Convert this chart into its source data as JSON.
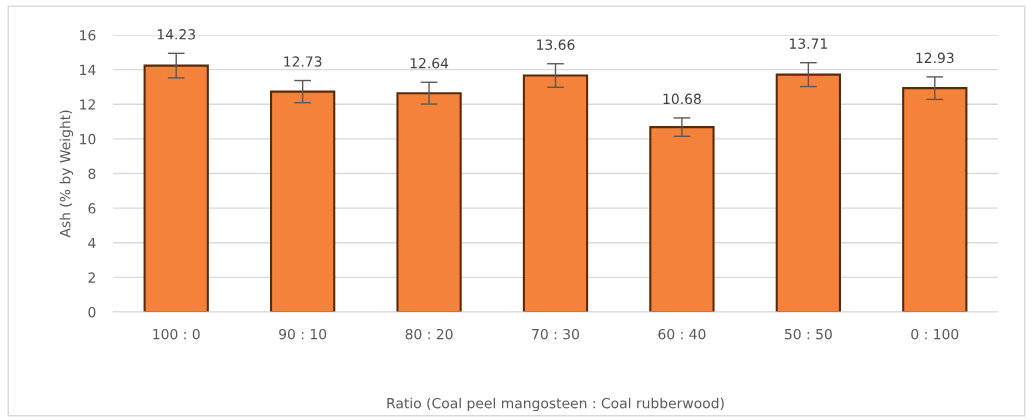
{
  "chart_data": {
    "type": "bar",
    "xlabel": "Ratio (Coal peel mangosteen : Coal rubberwood)",
    "ylabel": "Ash (% by Weight)",
    "categories": [
      "100 : 0",
      "90 : 10",
      "80 : 20",
      "70 : 30",
      "60 : 40",
      "50 : 50",
      "0 : 100"
    ],
    "values": [
      14.23,
      12.73,
      12.64,
      13.66,
      10.68,
      13.71,
      12.93
    ],
    "errors": [
      0.71,
      0.64,
      0.63,
      0.68,
      0.53,
      0.69,
      0.65
    ],
    "color": "#f5823a",
    "data_labels": true,
    "ylim": [
      0,
      16
    ],
    "yticks": [
      0,
      2,
      4,
      6,
      8,
      10,
      12,
      14,
      16
    ],
    "grid": "y",
    "legend": false
  }
}
